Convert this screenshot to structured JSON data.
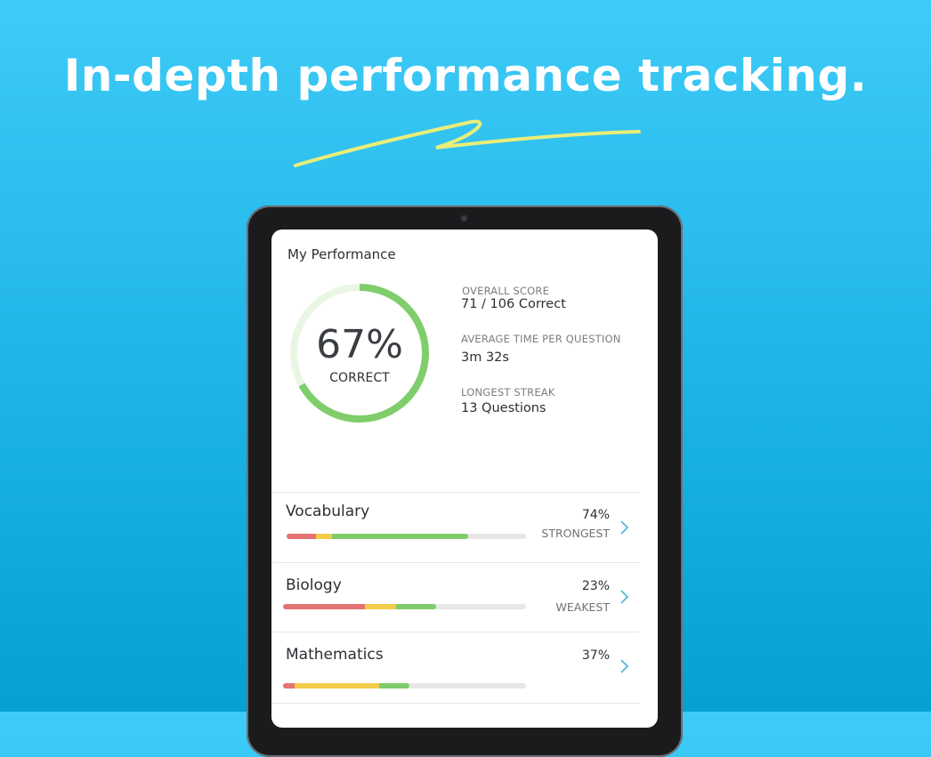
{
  "headline": "In-depth performance tracking.",
  "card": {
    "title": "My Performance",
    "score": {
      "value": 67,
      "label": "67%"
    },
    "score_caption": "CORRECT",
    "stats": [
      {
        "label": "OVERALL SCORE",
        "value": "71 / 106 Correct"
      },
      {
        "label": "AVERAGE TIME PER QUESTION",
        "value": "3m 32s"
      },
      {
        "label": "LONGEST STREAK",
        "value": "13 Questions"
      }
    ],
    "subjects": [
      {
        "name": "Vocabulary",
        "percent": "74%",
        "tag": "STRONGEST"
      },
      {
        "name": "Biology",
        "percent": "23%",
        "tag": "WEAKEST"
      },
      {
        "name": "Mathematics",
        "percent": "37%"
      }
    ]
  }
}
